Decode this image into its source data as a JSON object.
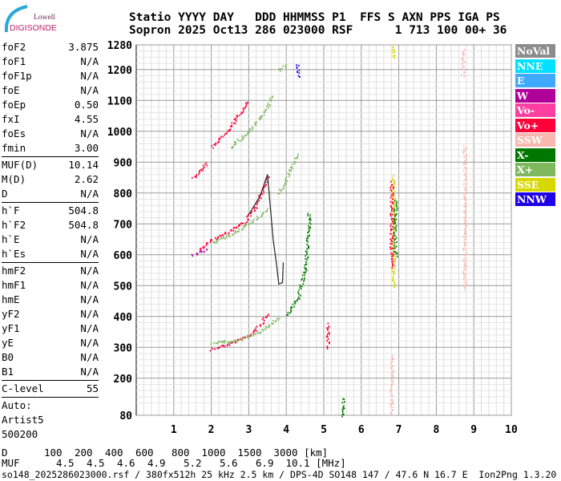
{
  "logo": {
    "line1": "Lowell",
    "line2": "DIGISONDE"
  },
  "header": {
    "labels": "Statio YYYY DAY   DDD HHMMSS P1  FFS S AXN PPS IGA PS",
    "values": "Sopron 2025 Oct13 286 023000 RSF      1 713 100 00+ 36"
  },
  "left_panel": {
    "group1": [
      [
        "foF2",
        "3.875"
      ],
      [
        "foF1",
        "N/A"
      ],
      [
        "foF1p",
        "N/A"
      ],
      [
        "foE",
        "N/A"
      ],
      [
        "foEp",
        "0.50"
      ],
      [
        "fxI",
        "4.55"
      ],
      [
        "foEs",
        "N/A"
      ],
      [
        "fmin",
        "3.00"
      ]
    ],
    "group2": [
      [
        "MUF(D)",
        "10.14"
      ],
      [
        "M(D)",
        "2.62"
      ],
      [
        "D",
        "N/A"
      ]
    ],
    "group3": [
      [
        "h`F",
        "504.8"
      ],
      [
        "h`F2",
        "504.8"
      ],
      [
        "h`E",
        "N/A"
      ],
      [
        "h`Es",
        "N/A"
      ]
    ],
    "group4": [
      [
        "hmF2",
        "N/A"
      ],
      [
        "hmF1",
        "N/A"
      ],
      [
        "hmE",
        "N/A"
      ],
      [
        "yF2",
        "N/A"
      ],
      [
        "yF1",
        "N/A"
      ],
      [
        "yE",
        "N/A"
      ],
      [
        "B0",
        "N/A"
      ],
      [
        "B1",
        "N/A"
      ]
    ],
    "group5": [
      [
        "C-level",
        "55"
      ]
    ],
    "auto": [
      "Auto:",
      "Artist5",
      "500200"
    ]
  },
  "legend": [
    {
      "label": "NoVal",
      "color": "#8c8c8c"
    },
    {
      "label": "NNE",
      "color": "#00e0ff"
    },
    {
      "label": "E",
      "color": "#40a8ff"
    },
    {
      "label": "W",
      "color": "#b0009a"
    },
    {
      "label": "Vo-",
      "color": "#ff40a0"
    },
    {
      "label": "Vo+",
      "color": "#ff0038"
    },
    {
      "label": "SSW",
      "color": "#f8b8b0"
    },
    {
      "label": "X-",
      "color": "#007800"
    },
    {
      "label": "X+",
      "color": "#80b860"
    },
    {
      "label": "SSE",
      "color": "#d8d800"
    },
    {
      "label": "NNW",
      "color": "#2000e8"
    }
  ],
  "muf_table": {
    "d_label": "D",
    "d_values": [
      "100",
      "200",
      "400",
      "600",
      "800",
      "1000",
      "1500",
      "3000"
    ],
    "d_unit": "[km]",
    "muf_label": "MUF",
    "muf_values": [
      "4.5",
      "4.5",
      "4.6",
      "4.9",
      "5.2",
      "5.6",
      "6.9",
      "10.1"
    ],
    "muf_unit": "[MHz]"
  },
  "footer": "so148_2025286023000.rsf / 380fx512h 25 kHz 2.5 km / DPS-4D SO148 147 / 47.6 N 16.7 E  Ion2Png 1.3.20",
  "chart_data": {
    "type": "scatter",
    "xlim": [
      0,
      10
    ],
    "ylim": [
      80,
      1280
    ],
    "xticks": [
      1,
      2,
      3,
      4,
      5,
      6,
      7,
      8,
      9,
      10
    ],
    "yticks": [
      80,
      200,
      300,
      400,
      500,
      600,
      700,
      800,
      900,
      1000,
      1100,
      1200,
      1280
    ],
    "grid": true,
    "legend_placement": "right",
    "traces": [
      {
        "legend": "Vo+",
        "points": [
          [
            2.0,
            295
          ],
          [
            2.5,
            315
          ],
          [
            3.0,
            340
          ],
          [
            3.3,
            375
          ],
          [
            3.5,
            410
          ]
        ]
      },
      {
        "legend": "Vo+",
        "points": [
          [
            1.7,
            620
          ],
          [
            2.0,
            650
          ],
          [
            2.5,
            680
          ],
          [
            2.9,
            710
          ],
          [
            3.2,
            760
          ],
          [
            3.5,
            860
          ]
        ]
      },
      {
        "legend": "Vo+",
        "points": [
          [
            1.5,
            850
          ],
          [
            1.9,
            900
          ]
        ]
      },
      {
        "legend": "Vo+",
        "points": [
          [
            2.0,
            950
          ],
          [
            2.4,
            1000
          ],
          [
            2.7,
            1050
          ],
          [
            3.0,
            1100
          ]
        ]
      },
      {
        "legend": "W",
        "points": [
          [
            1.5,
            600
          ],
          [
            1.9,
            620
          ]
        ]
      },
      {
        "legend": "X+",
        "points": [
          [
            2.0,
            318
          ],
          [
            2.6,
            322
          ],
          [
            3.2,
            345
          ],
          [
            3.6,
            380
          ],
          [
            3.8,
            400
          ]
        ]
      },
      {
        "legend": "X-",
        "points": [
          [
            4.0,
            405
          ],
          [
            4.3,
            460
          ],
          [
            4.5,
            560
          ],
          [
            4.6,
            700
          ],
          [
            4.6,
            740
          ]
        ]
      },
      {
        "legend": "X+",
        "points": [
          [
            2.0,
            640
          ],
          [
            2.6,
            670
          ],
          [
            3.2,
            720
          ],
          [
            3.55,
            750
          ]
        ]
      },
      {
        "legend": "X+",
        "points": [
          [
            2.5,
            950
          ],
          [
            3.0,
            1000
          ],
          [
            3.5,
            1080
          ],
          [
            3.6,
            1120
          ]
        ]
      },
      {
        "legend": "X+",
        "points": [
          [
            3.8,
            800
          ],
          [
            4.0,
            850
          ],
          [
            4.2,
            900
          ],
          [
            4.3,
            930
          ]
        ]
      },
      {
        "legend": "X+",
        "points": [
          [
            3.8,
            1200
          ],
          [
            4.0,
            1220
          ]
        ]
      },
      {
        "legend": "SSE",
        "points": [
          [
            6.85,
            500
          ],
          [
            6.85,
            860
          ]
        ]
      },
      {
        "legend": "Vo+",
        "points": [
          [
            6.8,
            560
          ],
          [
            6.8,
            840
          ]
        ]
      },
      {
        "legend": "X-",
        "points": [
          [
            6.9,
            600
          ],
          [
            6.9,
            780
          ]
        ]
      },
      {
        "legend": "SSW",
        "points": [
          [
            8.75,
            490
          ],
          [
            8.75,
            960
          ]
        ]
      },
      {
        "legend": "SSW",
        "points": [
          [
            8.7,
            1180
          ],
          [
            8.7,
            1270
          ]
        ]
      },
      {
        "legend": "SSW",
        "points": [
          [
            6.8,
            90
          ],
          [
            6.8,
            280
          ]
        ]
      },
      {
        "legend": "SSE",
        "points": [
          [
            6.85,
            1240
          ],
          [
            6.85,
            1280
          ]
        ]
      },
      {
        "legend": "Vo+",
        "points": [
          [
            5.1,
            300
          ],
          [
            5.1,
            380
          ]
        ]
      },
      {
        "legend": "X-",
        "points": [
          [
            5.5,
            80
          ],
          [
            5.5,
            140
          ]
        ]
      },
      {
        "legend": "NNW",
        "points": [
          [
            4.3,
            1180
          ],
          [
            4.3,
            1220
          ]
        ]
      }
    ],
    "profile": [
      [
        3.0,
        730
      ],
      [
        3.3,
        790
      ],
      [
        3.5,
        860
      ],
      [
        3.6,
        720
      ],
      [
        3.65,
        650
      ],
      [
        3.75,
        560
      ],
      [
        3.8,
        505
      ],
      [
        3.9,
        510
      ],
      [
        3.92,
        575
      ]
    ]
  }
}
